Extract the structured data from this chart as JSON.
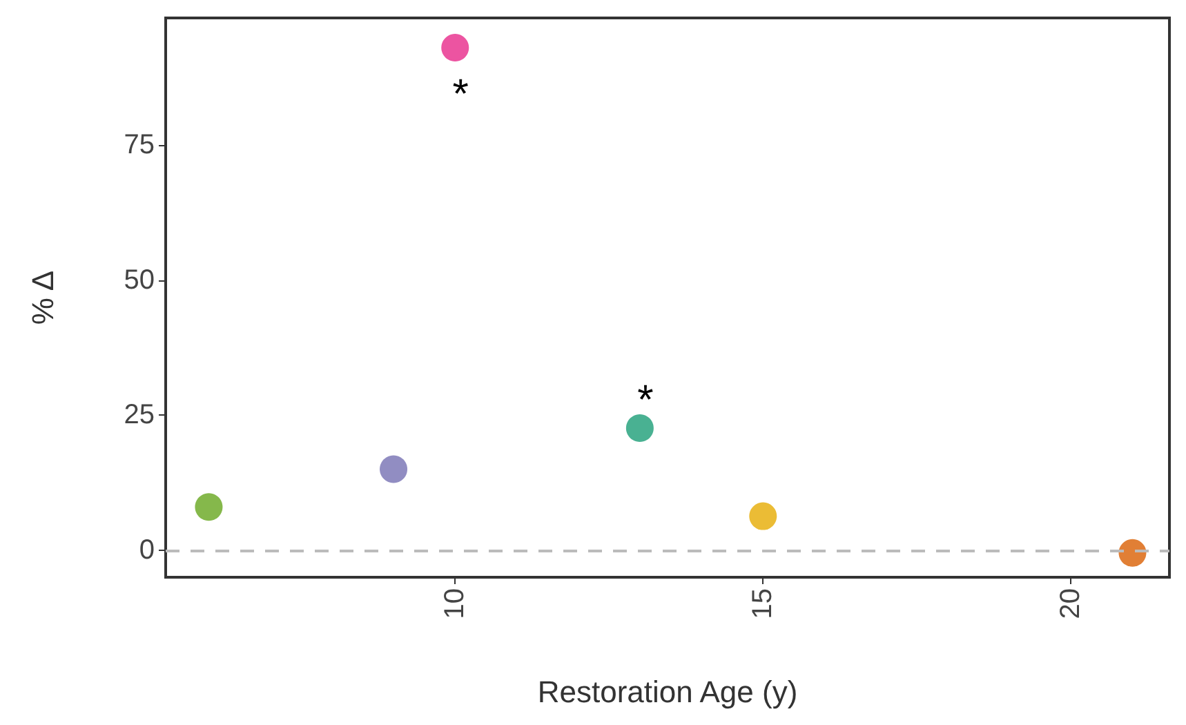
{
  "chart_data": {
    "type": "scatter",
    "xlabel": "Restoration Age (y)",
    "ylabel": "% Δ",
    "x": [
      6.0,
      9.0,
      10.0,
      13.0,
      15.0,
      21.0
    ],
    "values": [
      8.0,
      15.0,
      93.0,
      22.6,
      6.3,
      -0.5
    ],
    "colors": [
      "#66a61e",
      "#7570b3",
      "#e7298a",
      "#1b9e77",
      "#e6ab02",
      "#d95f02"
    ],
    "xlim": [
      5.3,
      21.6
    ],
    "xticks": [
      10,
      15,
      20
    ],
    "ylim": [
      -5,
      98.5
    ],
    "yticks": [
      0,
      25,
      50,
      75
    ],
    "grid": false,
    "marker": "circle",
    "ref_lines": [
      {
        "axis": "y",
        "value": 0,
        "color": "#bbbbbb",
        "line_style": "dashed"
      }
    ],
    "annotations": [
      {
        "text": "*",
        "x": 10.0,
        "y": 93.0
      },
      {
        "text": "*",
        "x": 13.0,
        "y": 22.6
      }
    ]
  }
}
